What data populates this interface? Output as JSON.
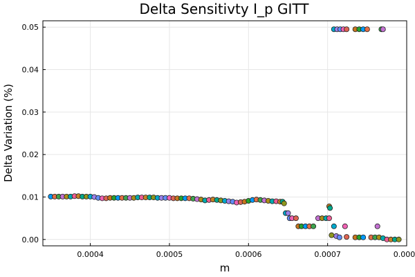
{
  "chart_data": {
    "type": "scatter",
    "title": "Delta Sensitivty I_p GITT",
    "xlabel": "m",
    "ylabel": "Delta Variation (%)",
    "xlim": [
      0.00034,
      0.0008
    ],
    "ylim": [
      -0.0015,
      0.0515
    ],
    "xticks": [
      {
        "value": 0.0004,
        "label": "0.0004"
      },
      {
        "value": 0.0005,
        "label": "0.0005"
      },
      {
        "value": 0.0006,
        "label": "0.0006"
      },
      {
        "value": 0.0007,
        "label": "0.0007"
      },
      {
        "value": 0.0008,
        "label": "0.0008"
      }
    ],
    "yticks": [
      {
        "value": 0.0,
        "label": "0.00"
      },
      {
        "value": 0.01,
        "label": "0.01"
      },
      {
        "value": 0.02,
        "label": "0.02"
      },
      {
        "value": 0.03,
        "label": "0.03"
      },
      {
        "value": 0.04,
        "label": "0.04"
      },
      {
        "value": 0.05,
        "label": "0.05"
      }
    ],
    "grid": true,
    "legend": "none",
    "palette": [
      "#009AFA",
      "#E36F47",
      "#3EA44E",
      "#C371D2",
      "#AC8E18",
      "#00AAAE",
      "#ED5E93",
      "#C68225",
      "#00A98D",
      "#8E971D",
      "#00A9CD",
      "#9B7FE9",
      "#618DF6",
      "#F062B4",
      "#DD6453",
      "#C7761E",
      "#27A32F"
    ],
    "series": [
      {
        "points": [
          [
            0.00035,
            0.0101
          ],
          [
            0.000355,
            0.0101
          ],
          [
            0.00036,
            0.0101
          ],
          [
            0.000365,
            0.0101
          ],
          [
            0.00037,
            0.0101
          ],
          [
            0.000375,
            0.0101
          ],
          [
            0.00038,
            0.0102
          ],
          [
            0.000385,
            0.0102
          ],
          [
            0.00039,
            0.0101
          ],
          [
            0.000395,
            0.0101
          ],
          [
            0.0004,
            0.0101
          ],
          [
            0.000405,
            0.01
          ],
          [
            0.00041,
            0.0098
          ],
          [
            0.000415,
            0.0097
          ],
          [
            0.00042,
            0.0097
          ],
          [
            0.000425,
            0.0098
          ],
          [
            0.00043,
            0.0098
          ],
          [
            0.000435,
            0.0098
          ],
          [
            0.00044,
            0.0098
          ],
          [
            0.000445,
            0.0098
          ],
          [
            0.00045,
            0.0098
          ],
          [
            0.000455,
            0.0098
          ],
          [
            0.00046,
            0.0099
          ],
          [
            0.000465,
            0.0099
          ],
          [
            0.00047,
            0.0099
          ],
          [
            0.000475,
            0.0099
          ],
          [
            0.00048,
            0.0099
          ],
          [
            0.000485,
            0.0098
          ],
          [
            0.00049,
            0.0098
          ],
          [
            0.000495,
            0.0098
          ],
          [
            0.0005,
            0.0098
          ],
          [
            0.000505,
            0.0097
          ],
          [
            0.00051,
            0.0097
          ],
          [
            0.000515,
            0.0097
          ],
          [
            0.00052,
            0.0097
          ],
          [
            0.000525,
            0.0097
          ],
          [
            0.00053,
            0.0096
          ],
          [
            0.000535,
            0.0095
          ],
          [
            0.00054,
            0.0094
          ],
          [
            0.000545,
            0.0092
          ],
          [
            0.00055,
            0.0093
          ],
          [
            0.000555,
            0.0094
          ],
          [
            0.00056,
            0.0093
          ],
          [
            0.000565,
            0.0092
          ],
          [
            0.00057,
            0.0091
          ],
          [
            0.000575,
            0.009
          ],
          [
            0.00058,
            0.0089
          ],
          [
            0.000585,
            0.0087
          ],
          [
            0.00059,
            0.0088
          ],
          [
            0.000595,
            0.0089
          ],
          [
            0.0006,
            0.0091
          ],
          [
            0.000605,
            0.0093
          ],
          [
            0.00061,
            0.0094
          ],
          [
            0.000615,
            0.0093
          ],
          [
            0.00062,
            0.0092
          ],
          [
            0.000625,
            0.0091
          ],
          [
            0.00063,
            0.009
          ],
          [
            0.000635,
            0.009
          ],
          [
            0.00064,
            0.0089
          ]
        ]
      },
      {
        "points": [
          [
            0.000643,
            0.0089
          ],
          [
            0.000645,
            0.0085
          ],
          [
            0.000647,
            0.0062
          ],
          [
            0.00065,
            0.0062
          ],
          [
            0.000652,
            0.005
          ],
          [
            0.000655,
            0.005
          ],
          [
            0.00066,
            0.005
          ],
          [
            0.000663,
            0.0031
          ],
          [
            0.000667,
            0.0031
          ],
          [
            0.000672,
            0.0031
          ],
          [
            0.000677,
            0.0031
          ],
          [
            0.000682,
            0.0031
          ],
          [
            0.000688,
            0.005
          ],
          [
            0.000693,
            0.005
          ],
          [
            0.000698,
            0.005
          ],
          [
            0.000702,
            0.005
          ],
          [
            0.000702,
            0.0078
          ],
          [
            0.000703,
            0.0074
          ],
          [
            0.000705,
            0.001
          ],
          [
            0.000708,
            0.0031
          ],
          [
            0.000711,
            0.0008
          ],
          [
            0.000715,
            0.0005
          ],
          [
            0.000722,
            0.0031
          ],
          [
            0.000724,
            0.0006
          ],
          [
            0.000735,
            0.0005
          ],
          [
            0.00074,
            0.0005
          ],
          [
            0.000745,
            0.0005
          ],
          [
            0.000755,
            0.0005
          ],
          [
            0.00076,
            0.0005
          ],
          [
            0.000763,
            0.0031
          ],
          [
            0.000765,
            0.0005
          ],
          [
            0.00077,
            0.0003
          ],
          [
            0.000775,
            0.0
          ],
          [
            0.00078,
            0.0
          ],
          [
            0.000785,
            0.0
          ],
          [
            0.00079,
            0.0
          ]
        ]
      },
      {
        "points": [
          [
            0.000708,
            0.0495
          ],
          [
            0.000712,
            0.0495
          ],
          [
            0.000716,
            0.0495
          ],
          [
            0.00072,
            0.0495
          ],
          [
            0.000724,
            0.0495
          ],
          [
            0.000735,
            0.0495
          ],
          [
            0.00074,
            0.0495
          ],
          [
            0.000745,
            0.0495
          ],
          [
            0.00075,
            0.0495
          ],
          [
            0.000768,
            0.0495
          ],
          [
            0.00077,
            0.0495
          ]
        ]
      }
    ]
  }
}
